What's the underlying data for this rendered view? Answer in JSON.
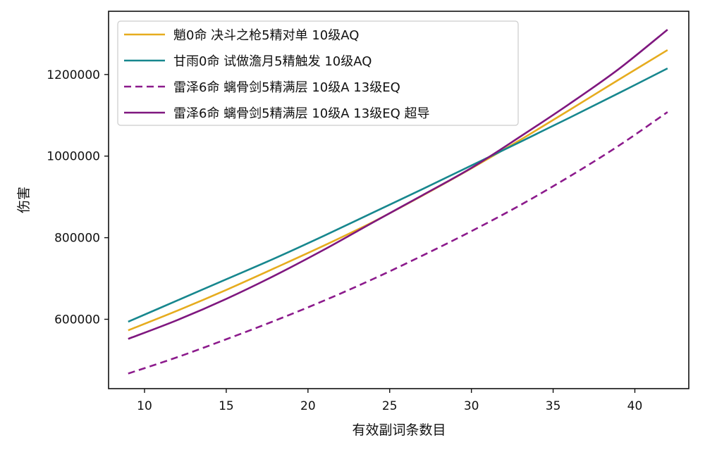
{
  "chart_data": {
    "type": "line",
    "title": "",
    "xlabel": "有效副词条数目",
    "ylabel": "伤害",
    "xlim": [
      7.8,
      43.3
    ],
    "ylim": [
      430000,
      1355000
    ],
    "xticks": [
      10,
      15,
      20,
      25,
      30,
      35,
      40
    ],
    "yticks": [
      600000,
      800000,
      1000000,
      1200000
    ],
    "grid": false,
    "legend_position": "top-left",
    "x": [
      9,
      12,
      15,
      18,
      21,
      24,
      27,
      30,
      33,
      36,
      39,
      42
    ],
    "series": [
      {
        "name": "魈0命 决斗之枪5精对单 10级AQ",
        "color": "#e6ac1e",
        "style": "solid",
        "values": [
          573000,
          621000,
          672000,
          726000,
          781000,
          839000,
          903000,
          970000,
          1040000,
          1113000,
          1187000,
          1260000
        ]
      },
      {
        "name": "甘雨0命 试做澹月5精触发 10级AQ",
        "color": "#17878e",
        "style": "solid",
        "values": [
          594000,
          646000,
          698000,
          750000,
          805000,
          862000,
          919000,
          977000,
          1035000,
          1094000,
          1154000,
          1215000
        ]
      },
      {
        "name": "雷泽6命 螭骨剑5精满层 10级A 13级EQ",
        "color": "#8c1a8c",
        "style": "dashed",
        "values": [
          467000,
          507000,
          551000,
          597000,
          646000,
          699000,
          756000,
          816000,
          880000,
          950000,
          1025000,
          1108000
        ]
      },
      {
        "name": "雷泽6命 螭骨剑5精满层 10级A 13级EQ 超导",
        "color": "#7f177f",
        "style": "solid",
        "values": [
          552000,
          598000,
          650000,
          708000,
          771000,
          838000,
          904000,
          971000,
          1048000,
          1128000,
          1213000,
          1310000
        ]
      }
    ]
  }
}
